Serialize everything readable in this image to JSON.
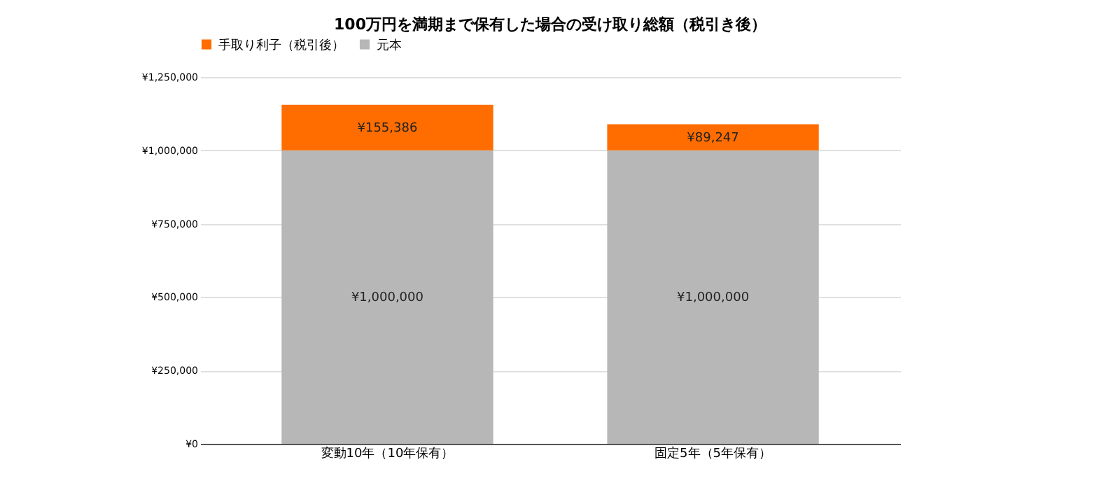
{
  "chart_data": {
    "type": "bar",
    "title": "100万円を満期まで保有した場合の受け取り総額（税引き後）",
    "categories": [
      "変動10年（10年保有）",
      "固定5年（5年保有）"
    ],
    "stacked": true,
    "series": [
      {
        "name": "元本",
        "color": "#b7b7b7",
        "values": [
          1000000,
          1000000
        ],
        "value_labels": [
          "¥1,000,000",
          "¥1,000,000"
        ]
      },
      {
        "name": "手取り利子（税引後）",
        "color": "#ff6d01",
        "values": [
          155386,
          89247
        ],
        "value_labels": [
          "¥155,386",
          "¥89,247"
        ]
      }
    ],
    "ylim": [
      0,
      1250000
    ],
    "yticks": [
      {
        "value": 0,
        "label": "¥0"
      },
      {
        "value": 250000,
        "label": "¥250,000"
      },
      {
        "value": 500000,
        "label": "¥500,000"
      },
      {
        "value": 750000,
        "label": "¥750,000"
      },
      {
        "value": 1000000,
        "label": "¥1,000,000"
      },
      {
        "value": 1250000,
        "label": "¥1,250,000"
      }
    ],
    "grid": "y",
    "legend": "top"
  }
}
